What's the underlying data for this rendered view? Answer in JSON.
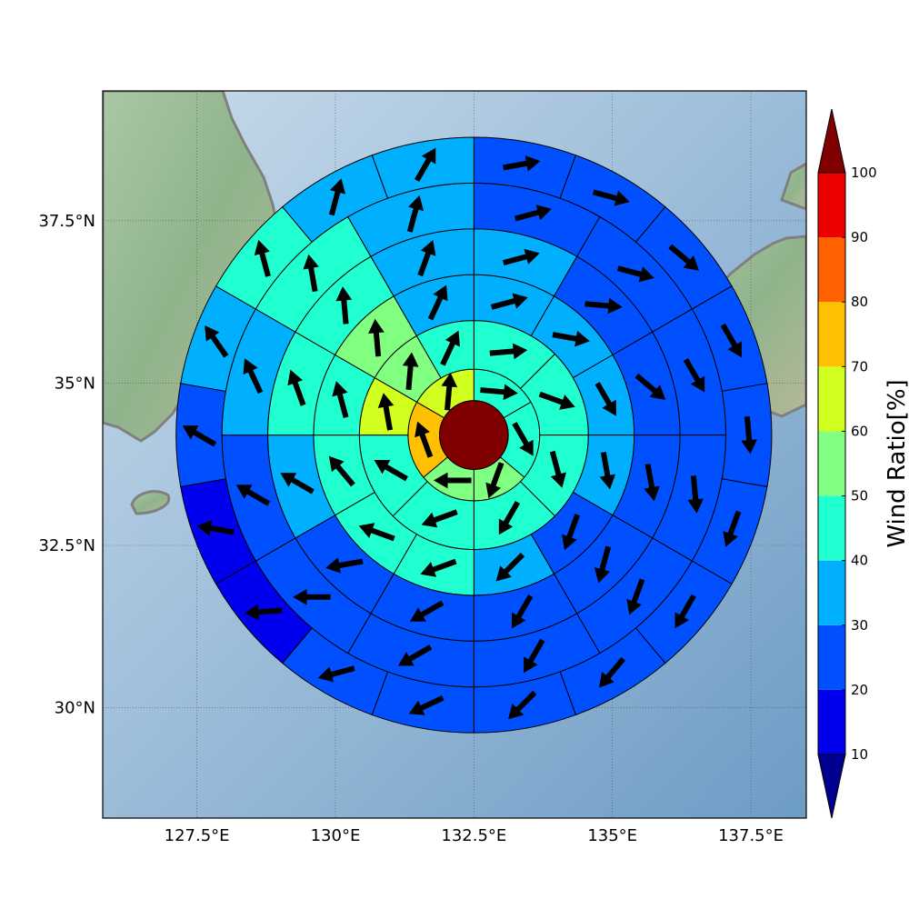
{
  "chart_data": {
    "type": "heatmap",
    "description_free": true,
    "map": {
      "lon_range": [
        125.8,
        138.5
      ],
      "lat_range": [
        28.3,
        39.5
      ],
      "x_ticks": [
        127.5,
        130,
        132.5,
        135,
        137.5
      ],
      "x_tick_labels": [
        "127.5°E",
        "130°E",
        "132.5°E",
        "135°E",
        "137.5°E"
      ],
      "y_ticks": [
        30,
        32.5,
        35,
        37.5
      ],
      "y_tick_labels": [
        "30°N",
        "32.5°N",
        "35°N",
        "37.5°N"
      ],
      "grid": true
    },
    "center": {
      "lon": 132.5,
      "lat": 34.2
    },
    "center_value": 100,
    "ring_radii": [
      1,
      2,
      3,
      4,
      5
    ],
    "colorbar": {
      "label": "Wind Ratio[%]",
      "ticks": [
        10,
        20,
        30,
        40,
        50,
        60,
        70,
        80,
        90,
        100
      ],
      "colors": [
        "#00008f",
        "#0000ef",
        "#0050ff",
        "#00b0ff",
        "#20ffd0",
        "#80ff80",
        "#d0ff20",
        "#ffc000",
        "#ff6000",
        "#ef0000",
        "#800000"
      ],
      "extend": "both"
    },
    "rings": [
      {
        "inner": 0.6,
        "outer": 1.15,
        "sectors": [
          {
            "start": 0,
            "end": 60,
            "value": 45,
            "dir": 95
          },
          {
            "start": 60,
            "end": 130,
            "value": 45,
            "dir": 150
          },
          {
            "start": 130,
            "end": 180,
            "value": 55,
            "dir": 200
          },
          {
            "start": 180,
            "end": 230,
            "value": 55,
            "dir": 270
          },
          {
            "start": 230,
            "end": 300,
            "value": 75,
            "dir": 340
          },
          {
            "start": 300,
            "end": 360,
            "value": 65,
            "dir": 5
          }
        ]
      },
      {
        "inner": 1.15,
        "outer": 2.0,
        "sectors": [
          {
            "start": 0,
            "end": 45,
            "value": 45,
            "dir": 85
          },
          {
            "start": 45,
            "end": 90,
            "value": 45,
            "dir": 110
          },
          {
            "start": 90,
            "end": 135,
            "value": 45,
            "dir": 165
          },
          {
            "start": 135,
            "end": 180,
            "value": 45,
            "dir": 210
          },
          {
            "start": 180,
            "end": 225,
            "value": 45,
            "dir": 250
          },
          {
            "start": 225,
            "end": 270,
            "value": 45,
            "dir": 300
          },
          {
            "start": 270,
            "end": 300,
            "value": 65,
            "dir": 350
          },
          {
            "start": 300,
            "end": 330,
            "value": 55,
            "dir": 5
          },
          {
            "start": 330,
            "end": 360,
            "value": 45,
            "dir": 25
          }
        ]
      },
      {
        "inner": 2.0,
        "outer": 2.8,
        "sectors": [
          {
            "start": 0,
            "end": 30,
            "value": 35,
            "dir": 75
          },
          {
            "start": 30,
            "end": 60,
            "value": 35,
            "dir": 100
          },
          {
            "start": 60,
            "end": 90,
            "value": 35,
            "dir": 150
          },
          {
            "start": 90,
            "end": 120,
            "value": 35,
            "dir": 170
          },
          {
            "start": 120,
            "end": 150,
            "value": 25,
            "dir": 200
          },
          {
            "start": 150,
            "end": 180,
            "value": 35,
            "dir": 225
          },
          {
            "start": 180,
            "end": 210,
            "value": 45,
            "dir": 250
          },
          {
            "start": 210,
            "end": 240,
            "value": 45,
            "dir": 290
          },
          {
            "start": 240,
            "end": 270,
            "value": 45,
            "dir": 320
          },
          {
            "start": 270,
            "end": 300,
            "value": 45,
            "dir": 345
          },
          {
            "start": 300,
            "end": 330,
            "value": 55,
            "dir": 355
          },
          {
            "start": 330,
            "end": 360,
            "value": 35,
            "dir": 25
          }
        ]
      },
      {
        "inner": 2.8,
        "outer": 3.6,
        "sectors": [
          {
            "start": 0,
            "end": 30,
            "value": 35,
            "dir": 75
          },
          {
            "start": 30,
            "end": 60,
            "value": 25,
            "dir": 95
          },
          {
            "start": 60,
            "end": 90,
            "value": 25,
            "dir": 130
          },
          {
            "start": 90,
            "end": 120,
            "value": 25,
            "dir": 170
          },
          {
            "start": 120,
            "end": 150,
            "value": 25,
            "dir": 195
          },
          {
            "start": 150,
            "end": 180,
            "value": 25,
            "dir": 210
          },
          {
            "start": 180,
            "end": 210,
            "value": 25,
            "dir": 240
          },
          {
            "start": 210,
            "end": 240,
            "value": 25,
            "dir": 260
          },
          {
            "start": 240,
            "end": 270,
            "value": 35,
            "dir": 300
          },
          {
            "start": 270,
            "end": 300,
            "value": 45,
            "dir": 340
          },
          {
            "start": 300,
            "end": 330,
            "value": 45,
            "dir": 355
          },
          {
            "start": 330,
            "end": 360,
            "value": 35,
            "dir": 20
          }
        ]
      },
      {
        "inner": 3.6,
        "outer": 4.4,
        "sectors": [
          {
            "start": 0,
            "end": 30,
            "value": 25,
            "dir": 75
          },
          {
            "start": 30,
            "end": 60,
            "value": 25,
            "dir": 105
          },
          {
            "start": 60,
            "end": 90,
            "value": 25,
            "dir": 150
          },
          {
            "start": 90,
            "end": 120,
            "value": 25,
            "dir": 175
          },
          {
            "start": 120,
            "end": 150,
            "value": 25,
            "dir": 200
          },
          {
            "start": 150,
            "end": 180,
            "value": 25,
            "dir": 210
          },
          {
            "start": 180,
            "end": 210,
            "value": 25,
            "dir": 240
          },
          {
            "start": 210,
            "end": 240,
            "value": 25,
            "dir": 270
          },
          {
            "start": 240,
            "end": 270,
            "value": 25,
            "dir": 300
          },
          {
            "start": 270,
            "end": 300,
            "value": 35,
            "dir": 335
          },
          {
            "start": 300,
            "end": 330,
            "value": 45,
            "dir": 350
          },
          {
            "start": 330,
            "end": 360,
            "value": 35,
            "dir": 15
          }
        ]
      },
      {
        "inner": 4.4,
        "outer": 5.2,
        "sectors": [
          {
            "start": 0,
            "end": 20,
            "value": 25,
            "dir": 80
          },
          {
            "start": 20,
            "end": 40,
            "value": 25,
            "dir": 105
          },
          {
            "start": 40,
            "end": 60,
            "value": 25,
            "dir": 130
          },
          {
            "start": 60,
            "end": 80,
            "value": 25,
            "dir": 150
          },
          {
            "start": 80,
            "end": 100,
            "value": 25,
            "dir": 175
          },
          {
            "start": 100,
            "end": 120,
            "value": 25,
            "dir": 200
          },
          {
            "start": 120,
            "end": 140,
            "value": 25,
            "dir": 210
          },
          {
            "start": 140,
            "end": 160,
            "value": 25,
            "dir": 220
          },
          {
            "start": 160,
            "end": 180,
            "value": 25,
            "dir": 225
          },
          {
            "start": 180,
            "end": 200,
            "value": 25,
            "dir": 245
          },
          {
            "start": 200,
            "end": 220,
            "value": 25,
            "dir": 255
          },
          {
            "start": 220,
            "end": 240,
            "value": 15,
            "dir": 265
          },
          {
            "start": 240,
            "end": 260,
            "value": 15,
            "dir": 280
          },
          {
            "start": 260,
            "end": 280,
            "value": 25,
            "dir": 300
          },
          {
            "start": 280,
            "end": 300,
            "value": 35,
            "dir": 325
          },
          {
            "start": 300,
            "end": 320,
            "value": 45,
            "dir": 345
          },
          {
            "start": 320,
            "end": 340,
            "value": 35,
            "dir": 15
          },
          {
            "start": 340,
            "end": 360,
            "value": 35,
            "dir": 30
          }
        ]
      }
    ]
  }
}
